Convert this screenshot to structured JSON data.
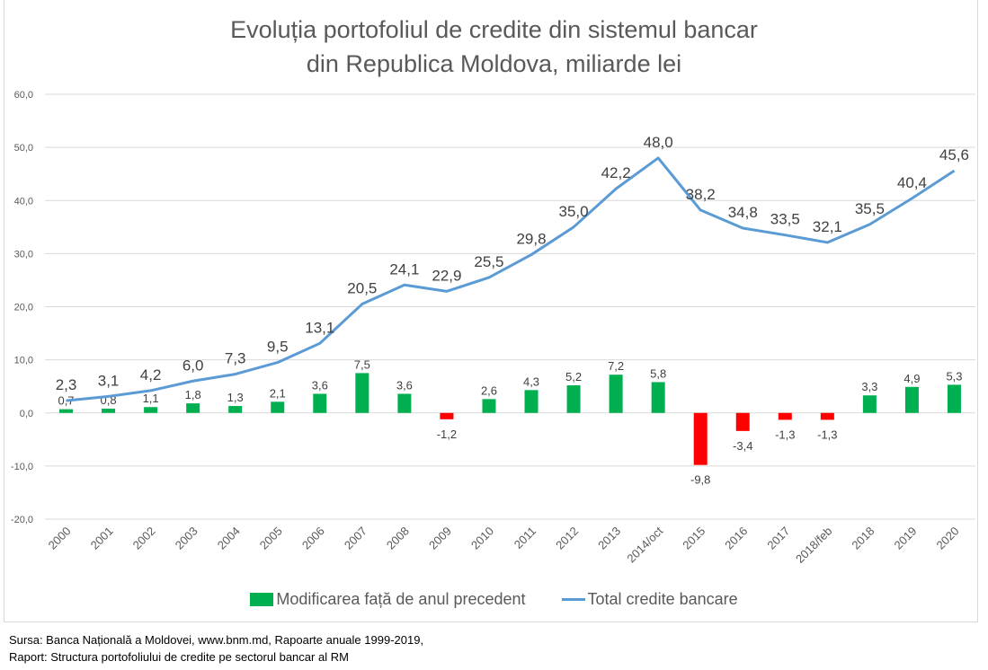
{
  "chart_data": {
    "type": "bar+line",
    "title_lines": [
      "Evoluția portofoliul de credite din sistemul bancar",
      "din Republica Moldova, miliarde lei"
    ],
    "categories": [
      "2000",
      "2001",
      "2002",
      "2003",
      "2004",
      "2005",
      "2006",
      "2007",
      "2008",
      "2009",
      "2010",
      "2011",
      "2012",
      "2013",
      "2014/oct",
      "2015",
      "2016",
      "2017",
      "2018/feb",
      "2018",
      "2019",
      "2020"
    ],
    "series": [
      {
        "name": "Modificarea față de anul precedent",
        "type": "bar",
        "color": "#00b050",
        "negative_color": "#ff0000",
        "values": [
          0.7,
          0.8,
          1.1,
          1.8,
          1.3,
          2.1,
          3.6,
          7.5,
          3.6,
          -1.2,
          2.6,
          4.3,
          5.2,
          7.2,
          5.8,
          -9.8,
          -3.4,
          -1.3,
          -1.3,
          3.3,
          4.9,
          5.3
        ],
        "labels": [
          "0,7",
          "0,8",
          "1,1",
          "1,8",
          "1,3",
          "2,1",
          "3,6",
          "7,5",
          "3,6",
          "-1,2",
          "2,6",
          "4,3",
          "5,2",
          "7,2",
          "5,8",
          "-9,8",
          "-3,4",
          "-1,3",
          "-1,3",
          "3,3",
          "4,9",
          "5,3"
        ]
      },
      {
        "name": "Total credite bancare",
        "type": "line",
        "color": "#5b9bd5",
        "values": [
          2.3,
          3.1,
          4.2,
          6.0,
          7.3,
          9.5,
          13.1,
          20.5,
          24.1,
          22.9,
          25.5,
          29.8,
          35.0,
          42.2,
          48.0,
          38.2,
          34.8,
          33.5,
          32.1,
          35.5,
          40.4,
          45.6
        ],
        "labels": [
          "2,3",
          "3,1",
          "4,2",
          "6,0",
          "7,3",
          "9,5",
          "13,1",
          "20,5",
          "24,1",
          "22,9",
          "25,5",
          "29,8",
          "35,0",
          "42,2",
          "48,0",
          "38,2",
          "34,8",
          "33,5",
          "32,1",
          "35,5",
          "40,4",
          "45,6"
        ]
      }
    ],
    "ylim": [
      -20,
      60
    ],
    "yticks": [
      60,
      50,
      40,
      30,
      20,
      10,
      0,
      -10,
      -20
    ],
    "ytick_labels": [
      "60,0",
      "50,0",
      "40,0",
      "30,0",
      "20,0",
      "10,0",
      "0,0",
      "-10,0",
      "-20,0"
    ],
    "grid": true,
    "legend_position": "bottom",
    "xlabel": "",
    "ylabel": ""
  },
  "legend": {
    "bar_label": "Modificarea față de anul precedent",
    "line_label": "Total credite bancare"
  },
  "source": {
    "line1": "Sursa: Banca Națională a Moldovei, www.bnm.md,  Rapoarte anuale 1999-2019,",
    "line2": "Raport: Structura  portofoliului  de credite pe sectorul bancar al RM"
  }
}
